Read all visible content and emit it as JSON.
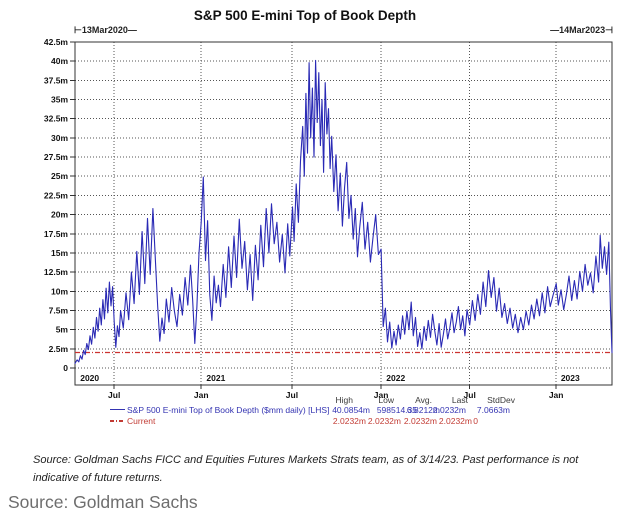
{
  "page": {
    "caption": "Source: Goldman Sachs"
  },
  "disclaimer": "Source: Goldman Sachs FICC and Equities Futures Markets Strats team, as of 3/14/23. Past performance is not indicative of future returns.",
  "chart_data": {
    "type": "line",
    "title": "S&P 500 E-mini Top of Book Depth",
    "range_start_label": "⊢13Mar2020—",
    "range_end_label": "—14Mar2023⊣",
    "xlabel": "",
    "ylabel": "",
    "ylim": [
      0,
      42.5
    ],
    "grid": true,
    "legend_position": "bottom",
    "colors": {
      "series_blue": "#2a2ab5",
      "current_red": "#cc3330",
      "grid": "#555555",
      "frame": "#333333"
    },
    "yticks": [
      {
        "v": 0,
        "label": "0"
      },
      {
        "v": 2.5,
        "label": "2.5m"
      },
      {
        "v": 5,
        "label": "5m"
      },
      {
        "v": 7.5,
        "label": "7.5m"
      },
      {
        "v": 10,
        "label": "10m"
      },
      {
        "v": 12.5,
        "label": "12.5m"
      },
      {
        "v": 15,
        "label": "15m"
      },
      {
        "v": 17.5,
        "label": "17.5m"
      },
      {
        "v": 20,
        "label": "20m"
      },
      {
        "v": 22.5,
        "label": "22.5m"
      },
      {
        "v": 25,
        "label": "25m"
      },
      {
        "v": 27.5,
        "label": "27.5m"
      },
      {
        "v": 30,
        "label": "30m"
      },
      {
        "v": 32.5,
        "label": "32.5m"
      },
      {
        "v": 35,
        "label": "35m"
      },
      {
        "v": 37.5,
        "label": "37.5m"
      },
      {
        "v": 40,
        "label": "40m"
      },
      {
        "v": 42.5,
        "label": "42.5m"
      }
    ],
    "xticks": [
      {
        "t": 0.073,
        "label": "Jul"
      },
      {
        "t": 0.235,
        "label": "Jan"
      },
      {
        "t": 0.404,
        "label": "Jul"
      },
      {
        "t": 0.57,
        "label": "Jan"
      },
      {
        "t": 0.735,
        "label": "Jul"
      },
      {
        "t": 0.896,
        "label": "Jan"
      }
    ],
    "year_labels": [
      {
        "t": 0.006,
        "label": "2020"
      },
      {
        "t": 0.241,
        "label": "2021"
      },
      {
        "t": 0.576,
        "label": "2022"
      },
      {
        "t": 0.901,
        "label": "2023"
      }
    ],
    "series": [
      {
        "name": "S&P 500 E-mini Top of Book Depth ($mm daily) [LHS]",
        "type": "line",
        "points": [
          [
            0.0,
            0.6
          ],
          [
            0.004,
            1.05
          ],
          [
            0.007,
            0.8
          ],
          [
            0.01,
            1.6
          ],
          [
            0.013,
            1.15
          ],
          [
            0.016,
            2.3
          ],
          [
            0.019,
            1.75
          ],
          [
            0.022,
            3.2
          ],
          [
            0.025,
            2.4
          ],
          [
            0.028,
            4.2
          ],
          [
            0.031,
            3.1
          ],
          [
            0.034,
            5.3
          ],
          [
            0.037,
            3.9
          ],
          [
            0.04,
            6.6
          ],
          [
            0.043,
            4.8
          ],
          [
            0.046,
            7.8
          ],
          [
            0.049,
            5.6
          ],
          [
            0.052,
            8.9
          ],
          [
            0.055,
            6.4
          ],
          [
            0.058,
            10.4
          ],
          [
            0.061,
            7.2
          ],
          [
            0.064,
            11.2
          ],
          [
            0.067,
            8.1
          ],
          [
            0.07,
            10.6
          ],
          [
            0.073,
            6.0
          ],
          [
            0.076,
            2.7
          ],
          [
            0.079,
            5.5
          ],
          [
            0.082,
            4.1
          ],
          [
            0.085,
            7.5
          ],
          [
            0.09,
            5.2
          ],
          [
            0.095,
            9.8
          ],
          [
            0.1,
            6.3
          ],
          [
            0.105,
            12.5
          ],
          [
            0.11,
            8.4
          ],
          [
            0.115,
            15.2
          ],
          [
            0.12,
            9.6
          ],
          [
            0.125,
            17.8
          ],
          [
            0.13,
            11.0
          ],
          [
            0.135,
            19.5
          ],
          [
            0.14,
            12.2
          ],
          [
            0.145,
            20.8
          ],
          [
            0.15,
            13.5
          ],
          [
            0.154,
            8.0
          ],
          [
            0.158,
            3.5
          ],
          [
            0.162,
            6.5
          ],
          [
            0.166,
            4.5
          ],
          [
            0.17,
            9.0
          ],
          [
            0.175,
            6.0
          ],
          [
            0.18,
            10.5
          ],
          [
            0.185,
            7.5
          ],
          [
            0.19,
            5.4
          ],
          [
            0.195,
            9.6
          ],
          [
            0.2,
            6.9
          ],
          [
            0.205,
            11.8
          ],
          [
            0.21,
            8.2
          ],
          [
            0.215,
            13.4
          ],
          [
            0.219,
            9.0
          ],
          [
            0.223,
            3.2
          ],
          [
            0.227,
            8.0
          ],
          [
            0.231,
            15.0
          ],
          [
            0.235,
            19.0
          ],
          [
            0.239,
            24.9
          ],
          [
            0.243,
            14.0
          ],
          [
            0.247,
            19.2
          ],
          [
            0.251,
            9.5
          ],
          [
            0.255,
            6.2
          ],
          [
            0.259,
            12.0
          ],
          [
            0.263,
            8.5
          ],
          [
            0.267,
            10.8
          ],
          [
            0.271,
            8.0
          ],
          [
            0.276,
            13.5
          ],
          [
            0.281,
            9.2
          ],
          [
            0.286,
            15.8
          ],
          [
            0.291,
            10.5
          ],
          [
            0.296,
            17.2
          ],
          [
            0.301,
            11.8
          ],
          [
            0.306,
            19.4
          ],
          [
            0.311,
            13.0
          ],
          [
            0.316,
            16.5
          ],
          [
            0.321,
            10.2
          ],
          [
            0.326,
            14.8
          ],
          [
            0.331,
            8.8
          ],
          [
            0.336,
            16.0
          ],
          [
            0.341,
            11.5
          ],
          [
            0.346,
            18.6
          ],
          [
            0.351,
            13.2
          ],
          [
            0.356,
            20.8
          ],
          [
            0.361,
            15.0
          ],
          [
            0.366,
            21.4
          ],
          [
            0.371,
            16.2
          ],
          [
            0.376,
            19.0
          ],
          [
            0.381,
            13.8
          ],
          [
            0.386,
            17.4
          ],
          [
            0.391,
            12.4
          ],
          [
            0.396,
            18.8
          ],
          [
            0.4,
            14.6
          ],
          [
            0.405,
            21.0
          ],
          [
            0.408,
            16.5
          ],
          [
            0.412,
            24.0
          ],
          [
            0.416,
            19.0
          ],
          [
            0.42,
            27.0
          ],
          [
            0.424,
            31.5
          ],
          [
            0.427,
            25.0
          ],
          [
            0.43,
            35.8
          ],
          [
            0.433,
            28.0
          ],
          [
            0.436,
            39.8
          ],
          [
            0.439,
            30.0
          ],
          [
            0.442,
            36.5
          ],
          [
            0.445,
            27.5
          ],
          [
            0.448,
            40.1
          ],
          [
            0.451,
            32.0
          ],
          [
            0.454,
            38.5
          ],
          [
            0.457,
            29.0
          ],
          [
            0.46,
            35.0
          ],
          [
            0.463,
            25.5
          ],
          [
            0.466,
            37.2
          ],
          [
            0.469,
            30.5
          ],
          [
            0.472,
            33.8
          ],
          [
            0.475,
            26.0
          ],
          [
            0.478,
            30.2
          ],
          [
            0.482,
            23.0
          ],
          [
            0.486,
            27.8
          ],
          [
            0.49,
            20.5
          ],
          [
            0.494,
            25.4
          ],
          [
            0.498,
            18.5
          ],
          [
            0.502,
            23.6
          ],
          [
            0.506,
            26.8
          ],
          [
            0.51,
            19.5
          ],
          [
            0.514,
            22.5
          ],
          [
            0.518,
            16.8
          ],
          [
            0.522,
            20.8
          ],
          [
            0.526,
            14.5
          ],
          [
            0.53,
            18.2
          ],
          [
            0.535,
            21.6
          ],
          [
            0.54,
            15.5
          ],
          [
            0.545,
            19.0
          ],
          [
            0.55,
            13.8
          ],
          [
            0.555,
            17.0
          ],
          [
            0.56,
            20.0
          ],
          [
            0.565,
            14.8
          ],
          [
            0.57,
            15.5
          ],
          [
            0.574,
            5.4
          ],
          [
            0.578,
            7.8
          ],
          [
            0.582,
            3.4
          ],
          [
            0.586,
            6.0
          ],
          [
            0.59,
            2.6
          ],
          [
            0.594,
            4.8
          ],
          [
            0.598,
            3.0
          ],
          [
            0.602,
            5.6
          ],
          [
            0.606,
            3.8
          ],
          [
            0.61,
            6.8
          ],
          [
            0.614,
            4.4
          ],
          [
            0.618,
            7.4
          ],
          [
            0.622,
            5.0
          ],
          [
            0.626,
            8.6
          ],
          [
            0.63,
            4.2
          ],
          [
            0.634,
            6.6
          ],
          [
            0.638,
            2.8
          ],
          [
            0.642,
            4.6
          ],
          [
            0.646,
            2.5
          ],
          [
            0.65,
            5.4
          ],
          [
            0.654,
            3.6
          ],
          [
            0.658,
            6.2
          ],
          [
            0.662,
            4.0
          ],
          [
            0.666,
            7.0
          ],
          [
            0.67,
            4.8
          ],
          [
            0.674,
            3.0
          ],
          [
            0.678,
            5.8
          ],
          [
            0.682,
            2.7
          ],
          [
            0.686,
            4.4
          ],
          [
            0.69,
            6.4
          ],
          [
            0.694,
            3.8
          ],
          [
            0.698,
            5.2
          ],
          [
            0.702,
            7.2
          ],
          [
            0.706,
            4.6
          ],
          [
            0.71,
            6.0
          ],
          [
            0.714,
            8.0
          ],
          [
            0.718,
            5.0
          ],
          [
            0.722,
            6.8
          ],
          [
            0.726,
            4.2
          ],
          [
            0.73,
            7.6
          ],
          [
            0.735,
            5.6
          ],
          [
            0.74,
            8.8
          ],
          [
            0.745,
            6.2
          ],
          [
            0.75,
            9.6
          ],
          [
            0.755,
            7.0
          ],
          [
            0.76,
            11.2
          ],
          [
            0.765,
            8.0
          ],
          [
            0.77,
            12.7
          ],
          [
            0.775,
            9.2
          ],
          [
            0.78,
            11.8
          ],
          [
            0.785,
            7.4
          ],
          [
            0.79,
            10.4
          ],
          [
            0.795,
            6.6
          ],
          [
            0.8,
            8.4
          ],
          [
            0.805,
            5.8
          ],
          [
            0.81,
            7.8
          ],
          [
            0.815,
            5.2
          ],
          [
            0.82,
            7.0
          ],
          [
            0.825,
            4.6
          ],
          [
            0.83,
            6.6
          ],
          [
            0.835,
            5.0
          ],
          [
            0.84,
            7.4
          ],
          [
            0.845,
            5.6
          ],
          [
            0.85,
            8.2
          ],
          [
            0.855,
            6.4
          ],
          [
            0.86,
            9.0
          ],
          [
            0.865,
            6.8
          ],
          [
            0.87,
            9.8
          ],
          [
            0.875,
            7.2
          ],
          [
            0.88,
            10.6
          ],
          [
            0.885,
            8.0
          ],
          [
            0.89,
            9.4
          ],
          [
            0.896,
            11.0
          ],
          [
            0.9,
            8.2
          ],
          [
            0.905,
            10.2
          ],
          [
            0.91,
            7.6
          ],
          [
            0.915,
            9.6
          ],
          [
            0.92,
            12.0
          ],
          [
            0.925,
            8.8
          ],
          [
            0.93,
            11.4
          ],
          [
            0.935,
            9.0
          ],
          [
            0.94,
            12.6
          ],
          [
            0.945,
            10.0
          ],
          [
            0.95,
            13.5
          ],
          [
            0.955,
            10.8
          ],
          [
            0.96,
            12.4
          ],
          [
            0.965,
            9.8
          ],
          [
            0.97,
            14.6
          ],
          [
            0.975,
            11.2
          ],
          [
            0.978,
            17.3
          ],
          [
            0.982,
            13.0
          ],
          [
            0.986,
            15.8
          ],
          [
            0.99,
            12.2
          ],
          [
            0.994,
            16.4
          ],
          [
            0.997,
            8.0
          ],
          [
            1.0,
            2.0
          ]
        ]
      },
      {
        "name": "Current",
        "type": "hline-dashdot",
        "value": 2.0232
      }
    ],
    "stats": {
      "headers": [
        "High",
        "Low",
        "Avg.",
        "Last",
        "StdDev"
      ],
      "rows": [
        {
          "label": "S&P 500 E-mini Top of Book Depth ($mm daily) [LHS]",
          "values": [
            "40.0854m",
            "598514.35",
            "6.8212m",
            "2.0232m",
            "7.0663m"
          ]
        },
        {
          "label": "Current",
          "values": [
            "2.0232m",
            "2.0232m",
            "2.0232m",
            "2.0232m",
            "0"
          ]
        }
      ]
    }
  }
}
